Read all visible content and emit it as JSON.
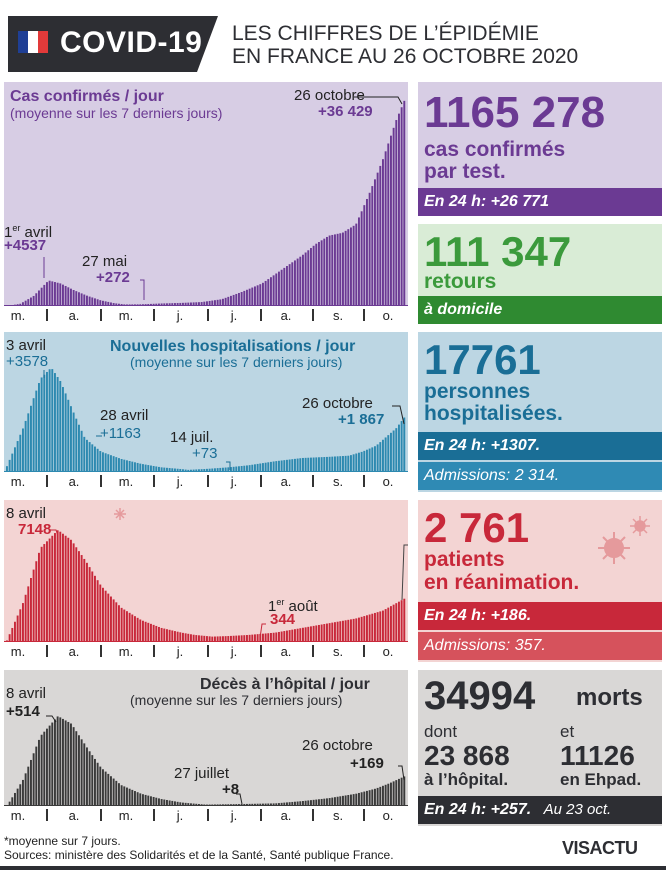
{
  "header": {
    "badge": "COVID-19",
    "title_line1": "LES CHIFFRES DE L’ÉPIDÉMIE",
    "title_line2": "EN FRANCE AU 26 OCTOBRE 2020",
    "flag_colors": [
      "#1f3f95",
      "#ffffff",
      "#e23a3a"
    ]
  },
  "months": [
    "m.",
    "a.",
    "m.",
    "j.",
    "j.",
    "a.",
    "s.",
    "o."
  ],
  "chart_data": [
    {
      "type": "bar",
      "title": "Cas confirmés / jour",
      "subtitle": "(moyenne sur les 7 derniers jours)",
      "x_range": [
        "mars",
        "26 octobre"
      ],
      "color": "#6b3a93",
      "background": "#d7cde4",
      "annotations": [
        {
          "date": "1er avril",
          "value": 4537,
          "label": "+4537"
        },
        {
          "date": "27 mai",
          "value": 272,
          "label": "+272"
        },
        {
          "date": "26 octobre",
          "value": 36429,
          "label": "+36 429"
        }
      ],
      "points": [
        [
          0,
          0
        ],
        [
          10,
          400
        ],
        [
          20,
          1800
        ],
        [
          31,
          4537
        ],
        [
          40,
          4000
        ],
        [
          50,
          2800
        ],
        [
          60,
          1800
        ],
        [
          70,
          1000
        ],
        [
          80,
          500
        ],
        [
          88,
          272
        ],
        [
          100,
          300
        ],
        [
          115,
          450
        ],
        [
          130,
          550
        ],
        [
          145,
          700
        ],
        [
          160,
          1200
        ],
        [
          175,
          2500
        ],
        [
          190,
          4000
        ],
        [
          205,
          6500
        ],
        [
          220,
          9000
        ],
        [
          230,
          11000
        ],
        [
          240,
          12500
        ],
        [
          250,
          13000
        ],
        [
          260,
          14500
        ],
        [
          270,
          20000
        ],
        [
          280,
          26000
        ],
        [
          290,
          33000
        ],
        [
          296,
          36429
        ]
      ]
    },
    {
      "type": "bar",
      "title": "Nouvelles hospitalisations / jour",
      "subtitle": "(moyenne sur les 7 derniers jours)",
      "color": "#2d89b0",
      "background": "#bcd6e3",
      "annotations": [
        {
          "date": "3 avril",
          "value": 3578,
          "label": "+3578"
        },
        {
          "date": "28 avril",
          "value": 1163,
          "label": "+1163"
        },
        {
          "date": "14 juil.",
          "value": 73,
          "label": "+73"
        },
        {
          "date": "26 octobre",
          "value": 1867,
          "label": "+1 867"
        }
      ],
      "points": [
        [
          0,
          200
        ],
        [
          12,
          1500
        ],
        [
          25,
          3200
        ],
        [
          33,
          3578
        ],
        [
          40,
          3100
        ],
        [
          50,
          2000
        ],
        [
          58,
          1163
        ],
        [
          70,
          700
        ],
        [
          85,
          450
        ],
        [
          100,
          280
        ],
        [
          115,
          160
        ],
        [
          130,
          100
        ],
        [
          135,
          73
        ],
        [
          150,
          110
        ],
        [
          165,
          160
        ],
        [
          180,
          230
        ],
        [
          200,
          370
        ],
        [
          220,
          480
        ],
        [
          240,
          520
        ],
        [
          255,
          560
        ],
        [
          265,
          700
        ],
        [
          275,
          900
        ],
        [
          285,
          1300
        ],
        [
          290,
          1500
        ],
        [
          296,
          1867
        ]
      ]
    },
    {
      "type": "bar",
      "title": "",
      "color": "#c8283a",
      "background": "#f3d4d3",
      "annotations": [
        {
          "date": "8 avril",
          "value": 7148,
          "label": "7148"
        },
        {
          "date": "1er août",
          "value": 344,
          "label": "344"
        }
      ],
      "points": [
        [
          0,
          100
        ],
        [
          12,
          2500
        ],
        [
          25,
          6000
        ],
        [
          38,
          7148
        ],
        [
          48,
          6500
        ],
        [
          60,
          5000
        ],
        [
          70,
          3600
        ],
        [
          85,
          2200
        ],
        [
          100,
          1400
        ],
        [
          115,
          900
        ],
        [
          130,
          600
        ],
        [
          140,
          450
        ],
        [
          153,
          344
        ],
        [
          165,
          380
        ],
        [
          180,
          450
        ],
        [
          200,
          600
        ],
        [
          220,
          900
        ],
        [
          240,
          1200
        ],
        [
          260,
          1500
        ],
        [
          280,
          2000
        ],
        [
          296,
          2761
        ]
      ]
    },
    {
      "type": "bar",
      "title": "Décès à l’hôpital / jour",
      "subtitle": "(moyenne sur les 7 derniers jours)",
      "color": "#3a3a3a",
      "background": "#d9d7d6",
      "annotations": [
        {
          "date": "8 avril",
          "value": 514,
          "label": "+514"
        },
        {
          "date": "27 juillet",
          "value": 8,
          "label": "+8"
        },
        {
          "date": "26 octobre",
          "value": 169,
          "label": "+169"
        }
      ],
      "points": [
        [
          0,
          0
        ],
        [
          12,
          150
        ],
        [
          25,
          400
        ],
        [
          38,
          514
        ],
        [
          48,
          470
        ],
        [
          60,
          330
        ],
        [
          70,
          220
        ],
        [
          85,
          120
        ],
        [
          100,
          70
        ],
        [
          115,
          40
        ],
        [
          130,
          20
        ],
        [
          148,
          8
        ],
        [
          165,
          10
        ],
        [
          180,
          12
        ],
        [
          200,
          15
        ],
        [
          220,
          28
        ],
        [
          240,
          45
        ],
        [
          260,
          70
        ],
        [
          275,
          100
        ],
        [
          285,
          130
        ],
        [
          296,
          169
        ]
      ]
    }
  ],
  "charts": {
    "cases": {
      "title": "Cas confirmés / jour",
      "subtitle": "(moyenne sur les 7 derniers jours)",
      "a1_date": "1",
      "a1_sup": "er",
      "a1_rest": " avril",
      "a1_val": "+4537",
      "a2_date": "27 mai",
      "a2_val": "+272",
      "a3_date": "26 octobre",
      "a3_val": "+36 429"
    },
    "hosp": {
      "title": "Nouvelles hospitalisations / jour",
      "subtitle": "(moyenne sur les 7 derniers jours)",
      "a1_date": "3 avril",
      "a1_val": "+3578",
      "a2_date": "28 avril",
      "a2_val": "+1163",
      "a3_date": "14 juil.",
      "a3_val": "+73",
      "a4_date": "26 octobre",
      "a4_val": "+1 867"
    },
    "rea": {
      "a1_date": "8 avril",
      "a1_val": "7148",
      "a2_date_pre": "1",
      "a2_sup": "er",
      "a2_rest": " août",
      "a2_val": "344"
    },
    "deaths": {
      "title": "Décès à l’hôpital / jour",
      "subtitle": "(moyenne sur les 7 derniers jours)",
      "a1_date": "8 avril",
      "a1_val": "+514",
      "a2_date": "27 juillet",
      "a2_val": "+8",
      "a3_date": "26 octobre",
      "a3_val": "+169"
    }
  },
  "stats": {
    "cases": {
      "big": "1165 278",
      "line1": "cas confirmés",
      "line2": "par test.",
      "bar": "En 24 h: +26 771"
    },
    "home": {
      "big": "111 347",
      "line1": "retours",
      "bar": "à domicile"
    },
    "hosp": {
      "big": "17761",
      "line1": "personnes",
      "line2": "hospitalisées.",
      "bar1": "En 24 h: +1307.",
      "bar2": "Admissions: 2 314."
    },
    "rea": {
      "big": "2 761",
      "line1": "patients",
      "line2": "en réanimation.",
      "bar1": "En 24 h: +186.",
      "bar2": "Admissions: 357."
    },
    "deaths": {
      "big": "34994",
      "big_unit": "morts",
      "dont": "dont",
      "et": "et",
      "hosp_num": "23 868",
      "hosp_lbl": "à l’hôpital.",
      "ehpad_num": "11126",
      "ehpad_lbl": "en Ehpad.",
      "bar": "En 24 h: +257.",
      "bar_note": "Au 23 oct."
    }
  },
  "colors": {
    "purple": "#6b3a93",
    "purple_bg": "#d7cde4",
    "green": "#3b9a3c",
    "green_dark": "#2f8a31",
    "blue": "#2d89b0",
    "blue_bar": "#1a6e96",
    "blue_bar2": "#2f8ab4",
    "blue_bg": "#bcd6e3",
    "red": "#c8283a",
    "red_bar2": "#d6525c",
    "red_bg": "#f3d4d3",
    "grey_bg": "#d9d7d6",
    "dark": "#2d2e33"
  },
  "footer": {
    "note": "*moyenne sur 7 jours.",
    "sources": "Sources: ministère des Solidarités et de la Santé, Santé publique France.",
    "logo": "VISACTU"
  }
}
